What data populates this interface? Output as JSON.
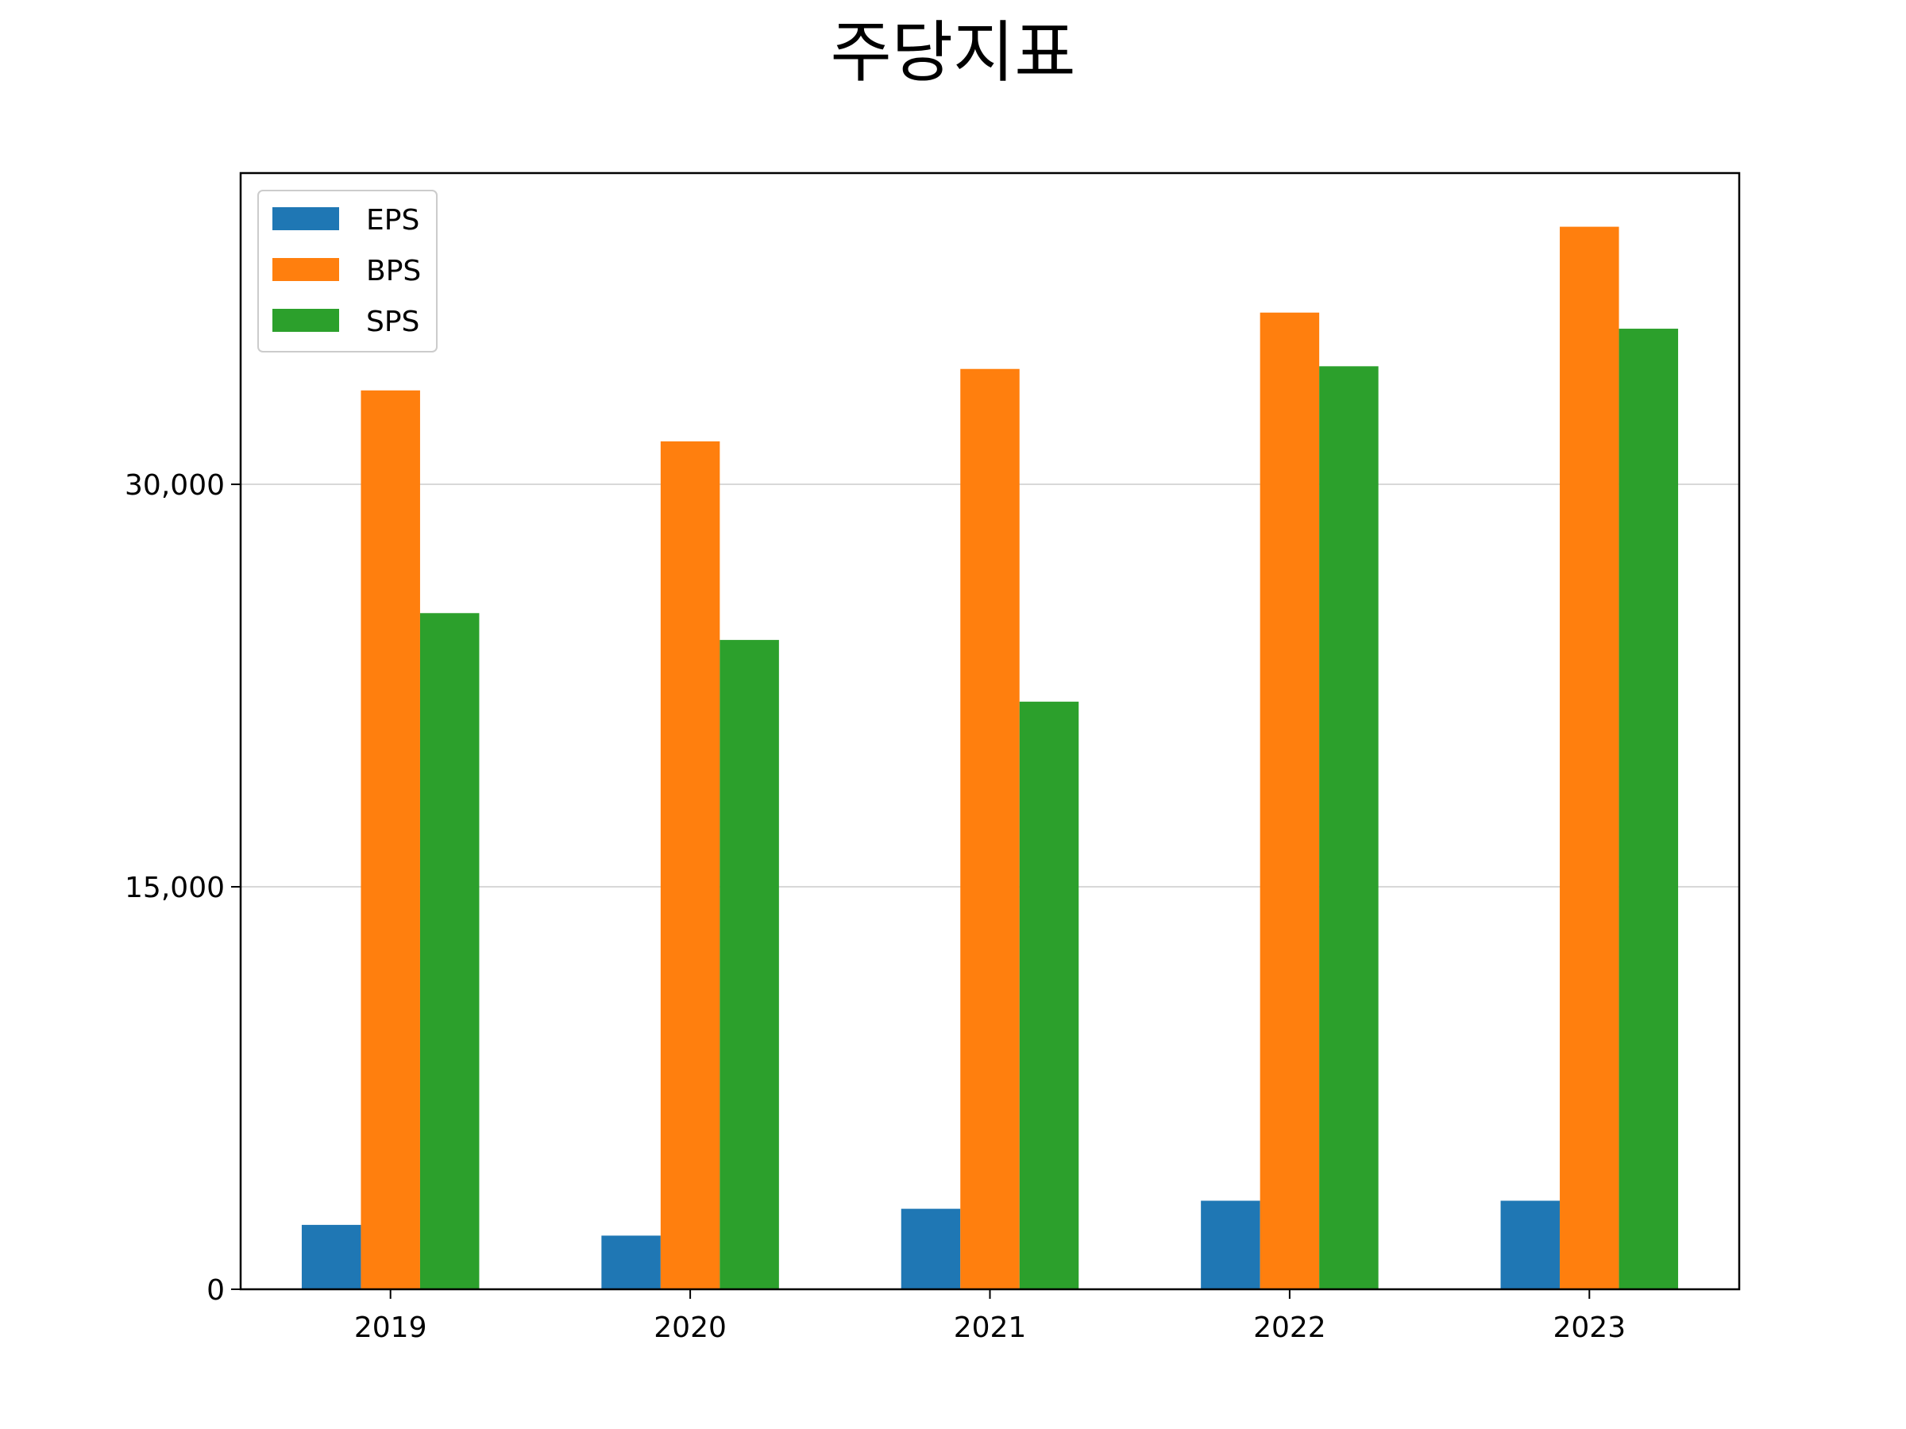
{
  "chart_data": {
    "type": "bar",
    "title": "주당지표",
    "xlabel": "",
    "ylabel": "",
    "categories": [
      "2019",
      "2020",
      "2021",
      "2022",
      "2023"
    ],
    "series": [
      {
        "name": "EPS",
        "color": "#1f77b4",
        "values": [
          2400,
          2000,
          3000,
          3300,
          3300
        ]
      },
      {
        "name": "BPS",
        "color": "#ff7f0e",
        "values": [
          33500,
          31600,
          34300,
          36400,
          39600
        ]
      },
      {
        "name": "SPS",
        "color": "#2ca02c",
        "values": [
          25200,
          24200,
          21900,
          34400,
          35800
        ]
      }
    ],
    "ylim": [
      0,
      41600
    ],
    "yticks": [
      0,
      15000,
      30000
    ],
    "ytick_labels": [
      "0",
      "15,000",
      "30,000"
    ],
    "grid": "y",
    "legend": "top-left"
  }
}
